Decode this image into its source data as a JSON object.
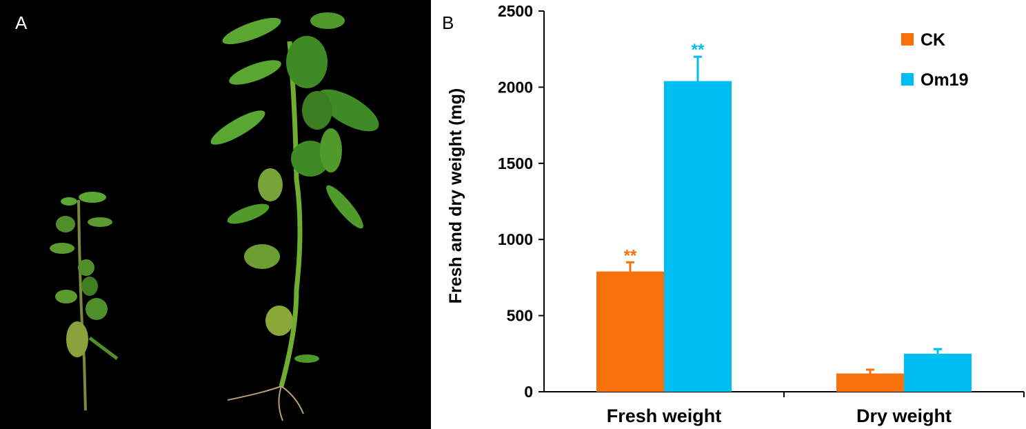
{
  "panels": {
    "a_label": "A",
    "b_label": "B"
  },
  "photo": {
    "background": "#000000",
    "description_icon": "plant-seedlings"
  },
  "chart_data": {
    "type": "bar",
    "categories": [
      "Fresh weight",
      "Dry weight"
    ],
    "series": [
      {
        "name": "CK",
        "color": "#f77009",
        "values": [
          790,
          120
        ],
        "errors": [
          60,
          25
        ],
        "annotations": [
          "**",
          ""
        ]
      },
      {
        "name": "Om19",
        "color": "#00bdf2",
        "values": [
          2040,
          250
        ],
        "errors": [
          160,
          30
        ],
        "annotations": [
          "**",
          ""
        ]
      }
    ],
    "title": "",
    "xlabel": "",
    "ylabel": "Fresh  and dry weight (mg)",
    "ylim": [
      0,
      2500
    ],
    "yticks": [
      0,
      500,
      1000,
      1500,
      2000,
      2500
    ],
    "grid": false,
    "legend": "top-right"
  }
}
